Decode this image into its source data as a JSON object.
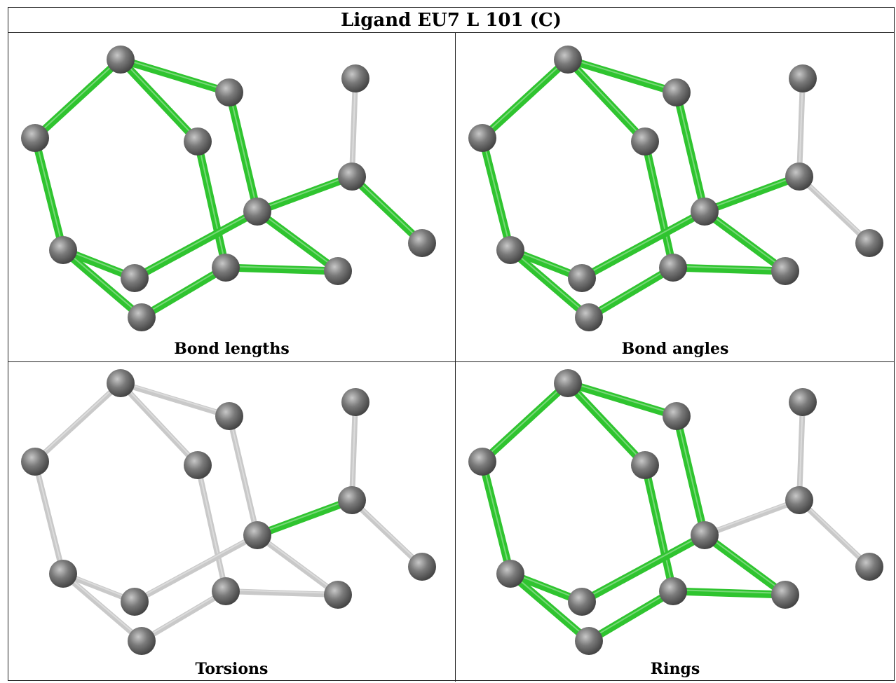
{
  "title": "Ligand EU7 L 101 (C)",
  "colors": {
    "highlight_bond": "#2fc42f",
    "normal_bond": "#c9c9c9",
    "atom": "#7a7a7a"
  },
  "panels": [
    {
      "caption": "Bond lengths",
      "green_bonds": [
        "b1",
        "b2",
        "b3",
        "b4",
        "b5",
        "b6",
        "b7",
        "b8",
        "b9",
        "b10",
        "b11",
        "b12",
        "b13",
        "b14",
        "b15",
        "b17"
      ]
    },
    {
      "caption": "Bond angles",
      "green_bonds": [
        "b1",
        "b2",
        "b3",
        "b4",
        "b5",
        "b6",
        "b7",
        "b8",
        "b9",
        "b10",
        "b11",
        "b12",
        "b13",
        "b14",
        "b15"
      ]
    },
    {
      "caption": "Torsions",
      "green_bonds": [
        "b15"
      ]
    },
    {
      "caption": "Rings",
      "green_bonds": [
        "b1",
        "b2",
        "b3",
        "b4",
        "b5",
        "b6",
        "b7",
        "b8",
        "b9",
        "b10",
        "b11",
        "b12",
        "b13",
        "b14"
      ]
    }
  ]
}
